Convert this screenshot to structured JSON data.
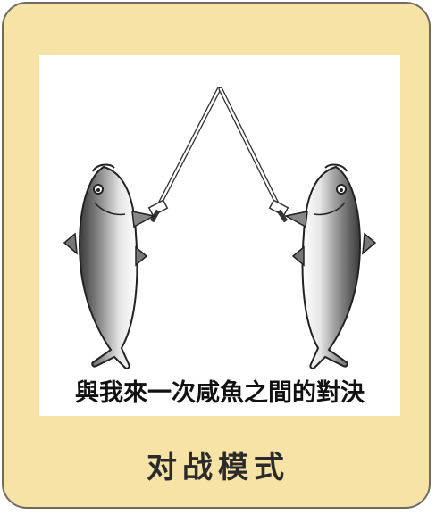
{
  "card": {
    "caption": "與我來一次咸魚之間的對決",
    "mode_label": "对战模式",
    "colors": {
      "card_background": "#f7e3a5",
      "card_border": "#6f6a63",
      "art_background": "#ffffff",
      "text": "#2b2b2b"
    },
    "illustration": {
      "subject": "two-fish-fencing-icon"
    }
  }
}
